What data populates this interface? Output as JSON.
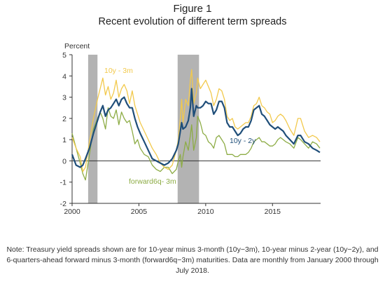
{
  "figure": {
    "label": "Figure 1",
    "title": "Recent evolution of different term spreads",
    "note": "Note: Treasury yield spreads shown are for 10-year minus 3-month (10y−3m), 10-year minus 2-year (10y−2y), and 6-quarters-ahead forward minus 3-month (forward6q−3m) maturities. Data are monthly from January 2000 through July 2018."
  },
  "chart_data": {
    "type": "line",
    "ylabel": "Percent",
    "xlim": [
      2000,
      2018.6
    ],
    "ylim": [
      -2,
      5
    ],
    "x_ticks": [
      2000,
      2005,
      2010,
      2015
    ],
    "y_ticks": [
      -2,
      -1,
      0,
      1,
      2,
      3,
      4,
      5
    ],
    "grid": false,
    "recessions": [
      [
        2001.2,
        2001.9
      ],
      [
        2007.9,
        2009.5
      ]
    ],
    "colors": {
      "10y-3m": "#f2c94c",
      "10y-2y": "#1f4e79",
      "forward6q-3m": "#8dac45",
      "recession": "#b3b3b3"
    },
    "series": [
      {
        "name": "10y - 3m",
        "points": [
          [
            2000.0,
            1.1
          ],
          [
            2000.3,
            0.6
          ],
          [
            2000.6,
            0.2
          ],
          [
            2000.8,
            -0.5
          ],
          [
            2001.0,
            -0.3
          ],
          [
            2001.3,
            0.9
          ],
          [
            2001.6,
            2.0
          ],
          [
            2001.9,
            2.9
          ],
          [
            2002.1,
            3.4
          ],
          [
            2002.3,
            3.9
          ],
          [
            2002.5,
            3.1
          ],
          [
            2002.7,
            3.5
          ],
          [
            2002.9,
            2.9
          ],
          [
            2003.1,
            3.2
          ],
          [
            2003.3,
            3.8
          ],
          [
            2003.5,
            3.0
          ],
          [
            2003.7,
            3.4
          ],
          [
            2003.9,
            3.6
          ],
          [
            2004.1,
            3.3
          ],
          [
            2004.3,
            2.7
          ],
          [
            2004.5,
            3.3
          ],
          [
            2004.7,
            2.6
          ],
          [
            2004.9,
            2.2
          ],
          [
            2005.1,
            1.8
          ],
          [
            2005.4,
            1.4
          ],
          [
            2005.7,
            1.0
          ],
          [
            2006.0,
            0.6
          ],
          [
            2006.3,
            0.3
          ],
          [
            2006.6,
            -0.1
          ],
          [
            2006.9,
            -0.3
          ],
          [
            2007.2,
            -0.4
          ],
          [
            2007.5,
            -0.2
          ],
          [
            2007.8,
            0.5
          ],
          [
            2007.95,
            1.0
          ],
          [
            2008.1,
            2.0
          ],
          [
            2008.2,
            2.9
          ],
          [
            2008.3,
            1.8
          ],
          [
            2008.5,
            2.9
          ],
          [
            2008.7,
            2.6
          ],
          [
            2008.85,
            3.8
          ],
          [
            2008.95,
            4.3
          ],
          [
            2009.1,
            2.7
          ],
          [
            2009.3,
            3.2
          ],
          [
            2009.4,
            3.9
          ],
          [
            2009.6,
            3.4
          ],
          [
            2009.8,
            3.6
          ],
          [
            2010.0,
            3.8
          ],
          [
            2010.2,
            3.5
          ],
          [
            2010.4,
            3.2
          ],
          [
            2010.6,
            2.6
          ],
          [
            2010.8,
            2.9
          ],
          [
            2011.0,
            3.4
          ],
          [
            2011.2,
            3.3
          ],
          [
            2011.4,
            2.9
          ],
          [
            2011.6,
            2.1
          ],
          [
            2011.8,
            1.9
          ],
          [
            2012.0,
            2.0
          ],
          [
            2012.2,
            1.6
          ],
          [
            2012.4,
            1.5
          ],
          [
            2012.6,
            1.6
          ],
          [
            2012.8,
            1.7
          ],
          [
            2013.0,
            1.8
          ],
          [
            2013.2,
            1.8
          ],
          [
            2013.4,
            2.1
          ],
          [
            2013.6,
            2.6
          ],
          [
            2013.8,
            2.7
          ],
          [
            2014.0,
            3.0
          ],
          [
            2014.2,
            2.6
          ],
          [
            2014.4,
            2.5
          ],
          [
            2014.6,
            2.3
          ],
          [
            2014.8,
            2.2
          ],
          [
            2015.0,
            1.8
          ],
          [
            2015.2,
            1.9
          ],
          [
            2015.4,
            2.1
          ],
          [
            2015.6,
            2.2
          ],
          [
            2015.8,
            2.1
          ],
          [
            2016.0,
            1.9
          ],
          [
            2016.3,
            1.5
          ],
          [
            2016.6,
            1.2
          ],
          [
            2016.9,
            2.0
          ],
          [
            2017.1,
            2.0
          ],
          [
            2017.4,
            1.4
          ],
          [
            2017.7,
            1.1
          ],
          [
            2018.0,
            1.2
          ],
          [
            2018.3,
            1.1
          ],
          [
            2018.55,
            0.9
          ]
        ]
      },
      {
        "name": "10y - 2y",
        "points": [
          [
            2000.0,
            0.3
          ],
          [
            2000.3,
            -0.2
          ],
          [
            2000.6,
            -0.3
          ],
          [
            2000.8,
            -0.2
          ],
          [
            2001.0,
            0.1
          ],
          [
            2001.3,
            0.6
          ],
          [
            2001.6,
            1.3
          ],
          [
            2001.9,
            1.9
          ],
          [
            2002.1,
            2.3
          ],
          [
            2002.3,
            2.6
          ],
          [
            2002.5,
            2.1
          ],
          [
            2002.7,
            2.4
          ],
          [
            2002.9,
            2.5
          ],
          [
            2003.1,
            2.7
          ],
          [
            2003.3,
            2.9
          ],
          [
            2003.5,
            2.6
          ],
          [
            2003.7,
            2.9
          ],
          [
            2003.9,
            3.0
          ],
          [
            2004.1,
            2.7
          ],
          [
            2004.3,
            2.5
          ],
          [
            2004.5,
            2.5
          ],
          [
            2004.7,
            2.0
          ],
          [
            2004.9,
            1.6
          ],
          [
            2005.1,
            1.3
          ],
          [
            2005.4,
            0.9
          ],
          [
            2005.7,
            0.5
          ],
          [
            2006.0,
            0.1
          ],
          [
            2006.3,
            0.0
          ],
          [
            2006.6,
            -0.1
          ],
          [
            2006.9,
            -0.2
          ],
          [
            2007.2,
            -0.1
          ],
          [
            2007.5,
            0.1
          ],
          [
            2007.8,
            0.5
          ],
          [
            2007.95,
            0.8
          ],
          [
            2008.1,
            1.4
          ],
          [
            2008.2,
            1.8
          ],
          [
            2008.3,
            1.5
          ],
          [
            2008.5,
            1.6
          ],
          [
            2008.7,
            1.9
          ],
          [
            2008.85,
            2.5
          ],
          [
            2008.95,
            3.4
          ],
          [
            2009.1,
            2.1
          ],
          [
            2009.3,
            2.6
          ],
          [
            2009.4,
            2.5
          ],
          [
            2009.6,
            2.5
          ],
          [
            2009.8,
            2.6
          ],
          [
            2010.0,
            2.8
          ],
          [
            2010.2,
            2.7
          ],
          [
            2010.4,
            2.7
          ],
          [
            2010.6,
            2.2
          ],
          [
            2010.8,
            2.4
          ],
          [
            2011.0,
            2.8
          ],
          [
            2011.2,
            2.8
          ],
          [
            2011.4,
            2.5
          ],
          [
            2011.6,
            1.8
          ],
          [
            2011.8,
            1.6
          ],
          [
            2012.0,
            1.6
          ],
          [
            2012.2,
            1.4
          ],
          [
            2012.4,
            1.2
          ],
          [
            2012.6,
            1.3
          ],
          [
            2012.8,
            1.5
          ],
          [
            2013.0,
            1.6
          ],
          [
            2013.2,
            1.6
          ],
          [
            2013.4,
            1.9
          ],
          [
            2013.6,
            2.4
          ],
          [
            2013.8,
            2.5
          ],
          [
            2014.0,
            2.6
          ],
          [
            2014.2,
            2.2
          ],
          [
            2014.4,
            2.1
          ],
          [
            2014.6,
            1.9
          ],
          [
            2014.8,
            1.7
          ],
          [
            2015.0,
            1.6
          ],
          [
            2015.2,
            1.5
          ],
          [
            2015.4,
            1.6
          ],
          [
            2015.6,
            1.5
          ],
          [
            2015.8,
            1.4
          ],
          [
            2016.0,
            1.2
          ],
          [
            2016.3,
            1.0
          ],
          [
            2016.6,
            0.8
          ],
          [
            2016.9,
            1.2
          ],
          [
            2017.1,
            1.2
          ],
          [
            2017.4,
            0.9
          ],
          [
            2017.7,
            0.8
          ],
          [
            2018.0,
            0.6
          ],
          [
            2018.3,
            0.5
          ],
          [
            2018.55,
            0.4
          ]
        ]
      },
      {
        "name": "forward6q- 3m",
        "points": [
          [
            2000.0,
            1.3
          ],
          [
            2000.3,
            0.6
          ],
          [
            2000.6,
            -0.1
          ],
          [
            2000.8,
            -0.6
          ],
          [
            2001.0,
            -0.9
          ],
          [
            2001.3,
            0.3
          ],
          [
            2001.6,
            1.5
          ],
          [
            2001.9,
            2.0
          ],
          [
            2002.1,
            2.3
          ],
          [
            2002.3,
            2.0
          ],
          [
            2002.5,
            1.5
          ],
          [
            2002.7,
            2.5
          ],
          [
            2002.9,
            2.1
          ],
          [
            2003.1,
            2.0
          ],
          [
            2003.3,
            2.4
          ],
          [
            2003.5,
            1.7
          ],
          [
            2003.7,
            2.3
          ],
          [
            2003.9,
            2.0
          ],
          [
            2004.1,
            1.8
          ],
          [
            2004.3,
            1.9
          ],
          [
            2004.5,
            1.4
          ],
          [
            2004.7,
            0.8
          ],
          [
            2004.9,
            1.0
          ],
          [
            2005.1,
            0.6
          ],
          [
            2005.4,
            0.3
          ],
          [
            2005.7,
            0.2
          ],
          [
            2006.0,
            -0.2
          ],
          [
            2006.3,
            -0.4
          ],
          [
            2006.6,
            -0.5
          ],
          [
            2006.9,
            -0.3
          ],
          [
            2007.2,
            -0.3
          ],
          [
            2007.5,
            -0.6
          ],
          [
            2007.8,
            -0.4
          ],
          [
            2007.95,
            0.0
          ],
          [
            2008.1,
            0.3
          ],
          [
            2008.2,
            -0.3
          ],
          [
            2008.3,
            0.2
          ],
          [
            2008.5,
            0.9
          ],
          [
            2008.7,
            0.5
          ],
          [
            2008.85,
            1.2
          ],
          [
            2008.95,
            1.7
          ],
          [
            2009.1,
            0.5
          ],
          [
            2009.3,
            1.1
          ],
          [
            2009.4,
            2.1
          ],
          [
            2009.6,
            1.8
          ],
          [
            2009.8,
            1.3
          ],
          [
            2010.0,
            1.2
          ],
          [
            2010.2,
            0.9
          ],
          [
            2010.4,
            0.8
          ],
          [
            2010.6,
            0.6
          ],
          [
            2010.8,
            1.1
          ],
          [
            2011.0,
            1.2
          ],
          [
            2011.2,
            1.0
          ],
          [
            2011.4,
            0.8
          ],
          [
            2011.6,
            0.3
          ],
          [
            2011.8,
            0.3
          ],
          [
            2012.0,
            0.3
          ],
          [
            2012.2,
            0.2
          ],
          [
            2012.4,
            0.2
          ],
          [
            2012.6,
            0.3
          ],
          [
            2012.8,
            0.3
          ],
          [
            2013.0,
            0.3
          ],
          [
            2013.2,
            0.4
          ],
          [
            2013.4,
            0.6
          ],
          [
            2013.6,
            0.9
          ],
          [
            2013.8,
            1.0
          ],
          [
            2014.0,
            1.1
          ],
          [
            2014.2,
            0.9
          ],
          [
            2014.4,
            0.9
          ],
          [
            2014.6,
            0.8
          ],
          [
            2014.8,
            0.7
          ],
          [
            2015.0,
            0.7
          ],
          [
            2015.2,
            0.8
          ],
          [
            2015.4,
            1.0
          ],
          [
            2015.6,
            1.1
          ],
          [
            2015.8,
            1.0
          ],
          [
            2016.0,
            0.9
          ],
          [
            2016.3,
            0.8
          ],
          [
            2016.6,
            0.6
          ],
          [
            2016.9,
            1.1
          ],
          [
            2017.1,
            1.0
          ],
          [
            2017.4,
            0.8
          ],
          [
            2017.7,
            0.6
          ],
          [
            2018.0,
            0.9
          ],
          [
            2018.3,
            0.8
          ],
          [
            2018.55,
            0.6
          ]
        ]
      }
    ],
    "annotations": [
      {
        "series": "10y - 3m",
        "text": "10y - 3m"
      },
      {
        "series": "10y - 2y",
        "text": "10y - 2y"
      },
      {
        "series": "forward6q- 3m",
        "text": "forward6q- 3m"
      }
    ]
  }
}
